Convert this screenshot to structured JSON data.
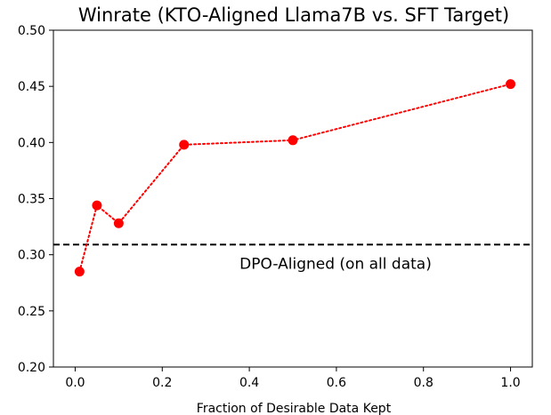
{
  "chart_data": {
    "type": "line",
    "title": "Winrate (KTO-Aligned Llama7B vs. SFT Target)",
    "xlabel": "Fraction of Desirable Data Kept",
    "ylabel": "",
    "xlim": [
      -0.05,
      1.05
    ],
    "ylim": [
      0.2,
      0.5
    ],
    "x_ticks": [
      "0.0",
      "0.2",
      "0.4",
      "0.6",
      "0.8",
      "1.0"
    ],
    "y_ticks": [
      "0.20",
      "0.25",
      "0.30",
      "0.35",
      "0.40",
      "0.45",
      "0.50"
    ],
    "grid": false,
    "series": [
      {
        "x": [
          0.01,
          0.05,
          0.1,
          0.25,
          0.5,
          1.0
        ],
        "y": [
          0.285,
          0.344,
          0.328,
          0.398,
          0.402,
          0.452
        ],
        "color": "#ff0000",
        "line_style": "dotted",
        "marker": "circle"
      }
    ],
    "reference_line": {
      "y": 0.309,
      "color": "#000000",
      "line_style": "dashed",
      "label": "DPO-Aligned (on all data)"
    }
  }
}
